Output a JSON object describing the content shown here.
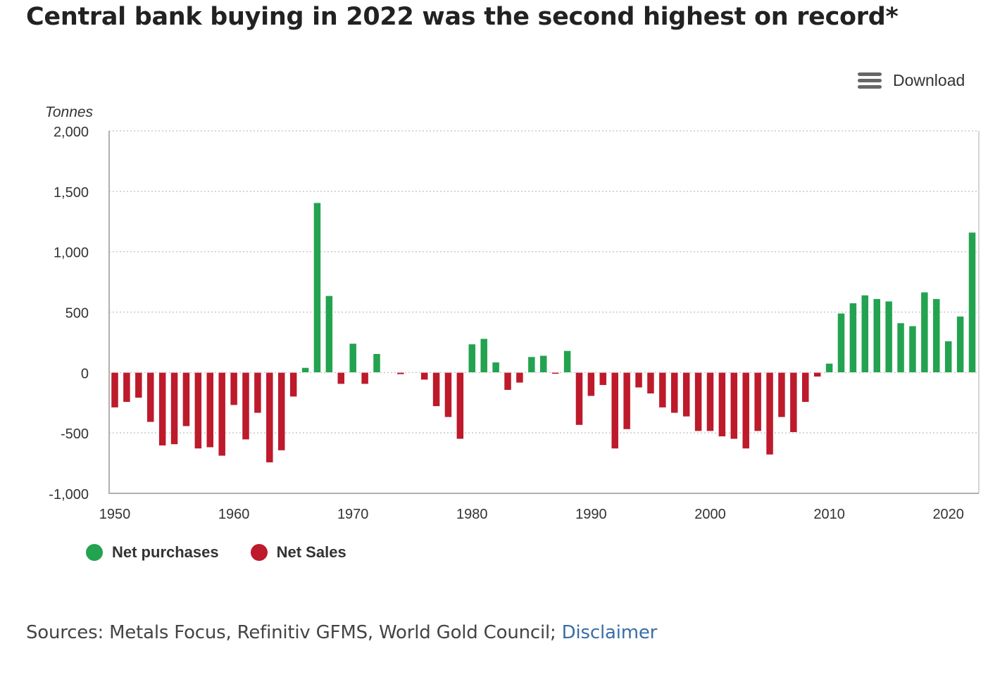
{
  "header": {
    "title": "Central bank buying in 2022 was the second highest on record*",
    "download_label": "Download",
    "download_icon": "hamburger-menu-icon"
  },
  "legend": [
    {
      "label": "Net purchases",
      "color": "#23a34f"
    },
    {
      "label": "Net Sales",
      "color": "#bd1a2b"
    }
  ],
  "footer": {
    "sources_text": "Sources: Metals Focus, Refinitiv GFMS, World Gold Council; ",
    "disclaimer_label": "Disclaimer",
    "link_color": "#3a6ea5"
  },
  "chart_data": {
    "type": "bar",
    "title": "Central bank buying in 2022 was the second highest on record*",
    "xlabel": "",
    "ylabel": "Tonnes",
    "ylim": [
      -1000,
      2000
    ],
    "yticks": [
      -1000,
      -500,
      0,
      500,
      1000,
      1500,
      2000
    ],
    "ytick_labels": [
      "-1,000",
      "-500",
      "0",
      "500",
      "1,000",
      "1,500",
      "2,000"
    ],
    "xticks": [
      1950,
      1960,
      1970,
      1980,
      1990,
      2000,
      2010,
      2020
    ],
    "xtick_labels": [
      "1950",
      "1960",
      "1970",
      "1980",
      "1990",
      "2000",
      "2010",
      "2020"
    ],
    "grid": true,
    "legend_position": "bottom-left",
    "positive_series": "Net purchases",
    "negative_series": "Net Sales",
    "colors": {
      "positive": "#23a34f",
      "negative": "#bd1a2b",
      "grid": "#c8c8c8",
      "axis": "#b0b0b0",
      "text": "#333333"
    },
    "categories": [
      1950,
      1951,
      1952,
      1953,
      1954,
      1955,
      1956,
      1957,
      1958,
      1959,
      1960,
      1961,
      1962,
      1963,
      1964,
      1965,
      1966,
      1967,
      1968,
      1969,
      1970,
      1971,
      1972,
      1973,
      1974,
      1975,
      1976,
      1977,
      1978,
      1979,
      1980,
      1981,
      1982,
      1983,
      1984,
      1985,
      1986,
      1987,
      1988,
      1989,
      1990,
      1991,
      1992,
      1993,
      1994,
      1995,
      1996,
      1997,
      1998,
      1999,
      2000,
      2001,
      2002,
      2003,
      2004,
      2005,
      2006,
      2007,
      2008,
      2009,
      2010,
      2011,
      2012,
      2013,
      2014,
      2015,
      2016,
      2017,
      2018,
      2019,
      2020,
      2021,
      2022
    ],
    "values": [
      -290,
      -245,
      -210,
      -410,
      -605,
      -595,
      -445,
      -630,
      -620,
      -690,
      -270,
      -555,
      -335,
      -745,
      -645,
      -200,
      40,
      1405,
      635,
      -95,
      240,
      -95,
      155,
      0,
      -15,
      0,
      -60,
      -280,
      -370,
      -550,
      235,
      280,
      85,
      -145,
      -85,
      130,
      140,
      -12,
      180,
      -435,
      -195,
      -105,
      -630,
      -470,
      -125,
      -175,
      -290,
      -335,
      -365,
      -485,
      -485,
      -530,
      -550,
      -630,
      -485,
      -680,
      -370,
      -495,
      -245,
      -35,
      75,
      490,
      575,
      640,
      610,
      590,
      410,
      385,
      665,
      610,
      260,
      465,
      1160
    ]
  }
}
